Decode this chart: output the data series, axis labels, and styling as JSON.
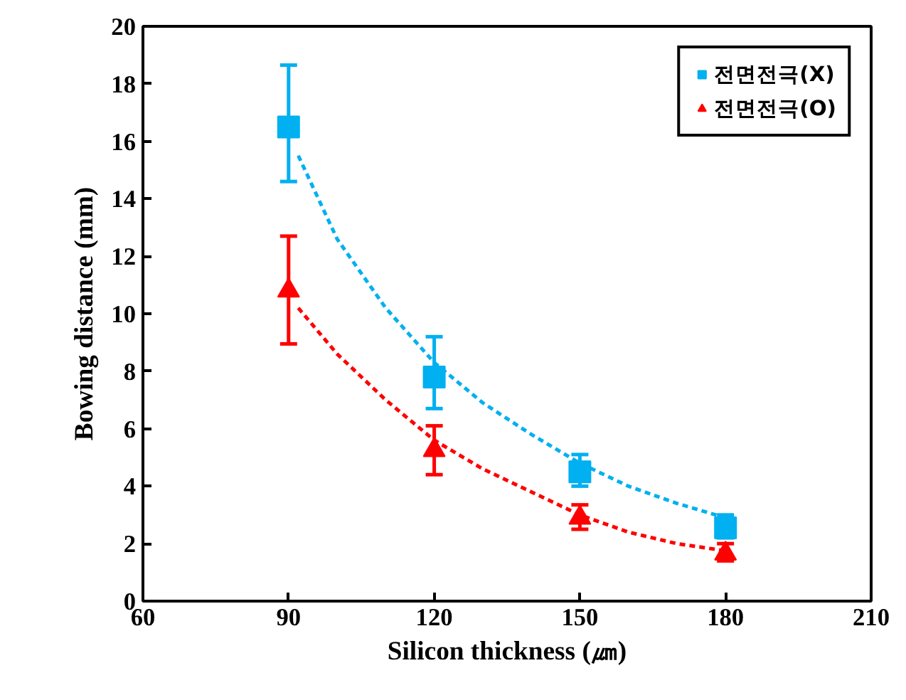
{
  "chart_data": {
    "type": "scatter",
    "xlabel": "Silicon thickness (㎛)",
    "ylabel": "Bowing distance (mm)",
    "x": [
      90,
      120,
      150,
      180
    ],
    "xlim": [
      60,
      210
    ],
    "xticks": [
      60,
      90,
      120,
      150,
      180,
      210
    ],
    "ylim": [
      0,
      20
    ],
    "yticks": [
      0,
      2,
      4,
      6,
      8,
      10,
      12,
      14,
      16,
      18,
      20
    ],
    "grid": false,
    "legend": "top right",
    "series": [
      {
        "name": "전면전극(X)",
        "marker": "square",
        "color": "#00b0f0",
        "values": [
          16.5,
          7.8,
          4.5,
          2.55
        ],
        "errors": [
          [
            14.6,
            18.65
          ],
          [
            6.7,
            9.2
          ],
          [
            4.0,
            5.1
          ],
          [
            2.2,
            3.0
          ]
        ]
      },
      {
        "name": "전면전극(O)",
        "marker": "triangle",
        "color": "#ff0000",
        "values": [
          10.8,
          5.25,
          2.9,
          1.65
        ],
        "errors": [
          [
            8.95,
            12.7
          ],
          [
            4.4,
            6.1
          ],
          [
            2.5,
            3.35
          ],
          [
            1.4,
            2.0
          ]
        ]
      },
      {
        "type": "line",
        "line_style": "dashed",
        "color": "#00b0f0",
        "x": [
          92,
          100,
          110,
          120,
          130,
          140,
          150,
          160,
          170,
          180
        ],
        "values": [
          15.5,
          12.6,
          10.2,
          8.3,
          6.9,
          5.8,
          4.8,
          4.0,
          3.4,
          2.9
        ]
      },
      {
        "type": "line",
        "line_style": "dashed",
        "color": "#ff0000",
        "x": [
          92,
          100,
          110,
          120,
          130,
          140,
          150,
          160,
          170,
          180
        ],
        "values": [
          10.2,
          8.6,
          7.0,
          5.6,
          4.6,
          3.8,
          3.0,
          2.4,
          2.0,
          1.75
        ]
      }
    ]
  }
}
